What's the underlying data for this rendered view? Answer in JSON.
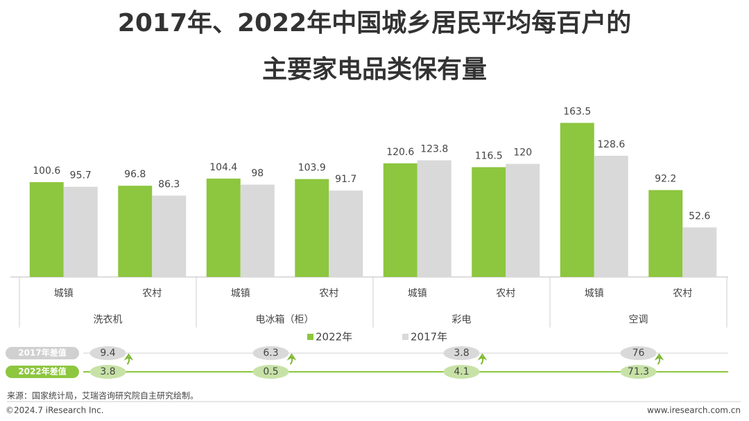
{
  "chart_data": {
    "type": "bar",
    "title": [
      "2017年、2022年中国城乡居民平均每百户的",
      "主要家电品类保有量"
    ],
    "categories": [
      "城镇",
      "农村",
      "城镇",
      "农村",
      "城镇",
      "农村",
      "城镇",
      "农村"
    ],
    "groups": [
      "洗衣机",
      "电冰箱（柜）",
      "彩电",
      "空调"
    ],
    "series": [
      {
        "name": "2022年",
        "color": "#8dc63f",
        "values": [
          100.6,
          96.8,
          104.4,
          103.9,
          120.6,
          116.5,
          163.5,
          92.2
        ]
      },
      {
        "name": "2017年",
        "color": "#d9d9d9",
        "values": [
          95.7,
          86.3,
          98,
          91.7,
          123.8,
          120,
          128.6,
          52.6
        ]
      }
    ],
    "ylim": [
      0,
      180
    ],
    "diffs": [
      {
        "name": "2017年差值",
        "color": "#d9d9d9",
        "values": [
          9.4,
          6.3,
          3.8,
          76
        ]
      },
      {
        "name": "2022年差值",
        "color": "#c7e2a6",
        "values": [
          3.8,
          0.5,
          4.1,
          71.3
        ]
      }
    ],
    "source": "来源：国家统计局，艾瑞咨询研究院自主研究绘制。",
    "copyright": "©2024.7 iResearch Inc.",
    "website": "www.iresearch.com.cn"
  }
}
